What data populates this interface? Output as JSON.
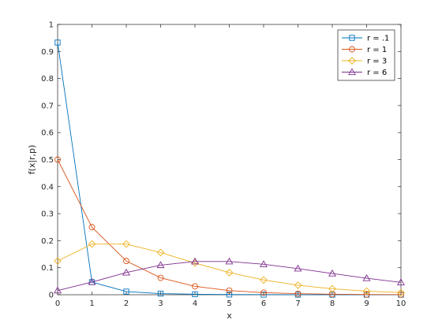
{
  "chart_data": {
    "type": "line",
    "title": "",
    "xlabel": "x",
    "ylabel": "f(x|r,p)",
    "xlim": [
      0,
      10
    ],
    "ylim": [
      0,
      1
    ],
    "xticks": [
      "0",
      "1",
      "2",
      "3",
      "4",
      "5",
      "6",
      "7",
      "8",
      "9",
      "10"
    ],
    "yticks": [
      "0",
      "0.1",
      "0.2",
      "0.3",
      "0.4",
      "0.5",
      "0.6",
      "0.7",
      "0.8",
      "0.9",
      "1"
    ],
    "grid": false,
    "legend_position": "top-right",
    "series": [
      {
        "name": "r = .1",
        "color": "#0072BD",
        "marker": "square",
        "x": [
          0,
          1,
          2,
          3,
          4,
          5,
          6,
          7,
          8,
          9,
          10
        ],
        "y": [
          0.933,
          0.0467,
          0.0117,
          0.0043,
          0.0019,
          0.0009,
          0.0004,
          0.0002,
          0.0001,
          0.0001,
          0.0
        ]
      },
      {
        "name": "r = 1",
        "color": "#D95319",
        "marker": "circle",
        "x": [
          0,
          1,
          2,
          3,
          4,
          5,
          6,
          7,
          8,
          9,
          10
        ],
        "y": [
          0.5,
          0.25,
          0.125,
          0.0625,
          0.03125,
          0.015625,
          0.0078,
          0.0039,
          0.00195,
          0.00098,
          0.00049
        ]
      },
      {
        "name": "r = 3",
        "color": "#EDB120",
        "marker": "diamond",
        "x": [
          0,
          1,
          2,
          3,
          4,
          5,
          6,
          7,
          8,
          9,
          10
        ],
        "y": [
          0.125,
          0.1875,
          0.1875,
          0.15625,
          0.1172,
          0.082,
          0.0547,
          0.0352,
          0.022,
          0.0134,
          0.0081
        ]
      },
      {
        "name": "r = 6",
        "color": "#7E2F8E",
        "marker": "triangle",
        "x": [
          0,
          1,
          2,
          3,
          4,
          5,
          6,
          7,
          8,
          9,
          10
        ],
        "y": [
          0.0156,
          0.0469,
          0.082,
          0.1094,
          0.123,
          0.123,
          0.1128,
          0.0967,
          0.0786,
          0.0611,
          0.0458
        ]
      }
    ]
  }
}
